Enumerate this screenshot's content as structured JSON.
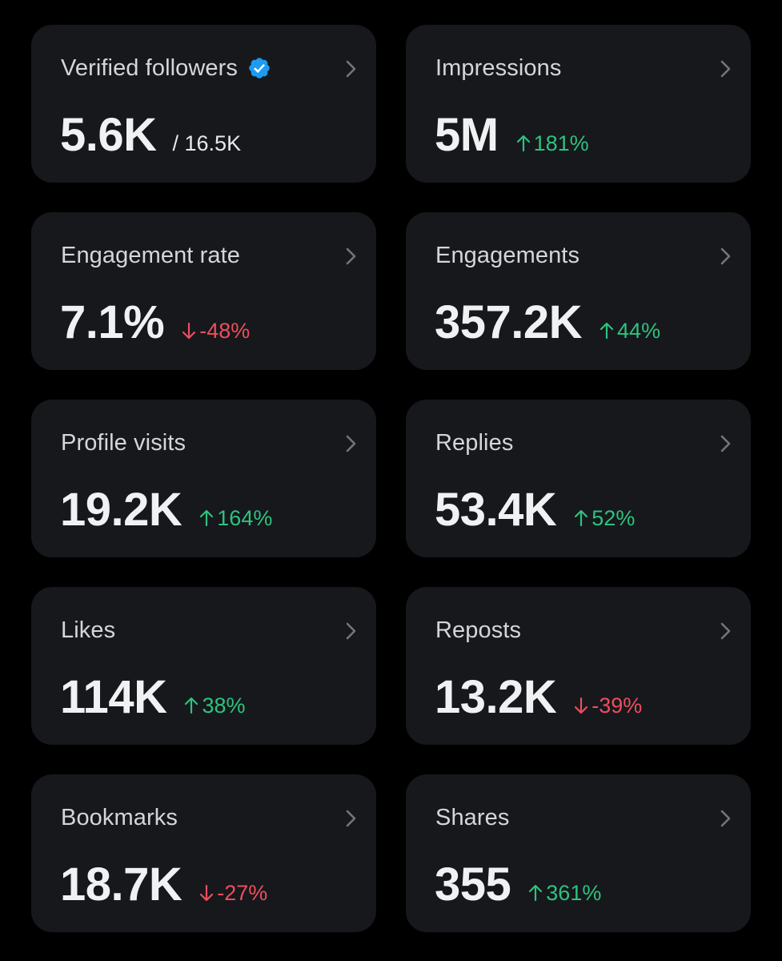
{
  "colors": {
    "background": "#000000",
    "card": "#16181c",
    "title": "#d3d6da",
    "value": "#eff1f3",
    "up": "#2ec27e",
    "down": "#ef4d5d",
    "verified": "#1d9bf0",
    "chevron": "#71767b"
  },
  "cards": [
    {
      "title": "Verified followers",
      "value": "5.6K",
      "total": "/ 16.5K",
      "icon": "verified-badge-icon"
    },
    {
      "title": "Impressions",
      "value": "5M",
      "change": "181%",
      "direction": "up"
    },
    {
      "title": "Engagement rate",
      "value": "7.1%",
      "change": "-48%",
      "direction": "down"
    },
    {
      "title": "Engagements",
      "value": "357.2K",
      "change": "44%",
      "direction": "up"
    },
    {
      "title": "Profile visits",
      "value": "19.2K",
      "change": "164%",
      "direction": "up"
    },
    {
      "title": "Replies",
      "value": "53.4K",
      "change": "52%",
      "direction": "up"
    },
    {
      "title": "Likes",
      "value": "114K",
      "change": "38%",
      "direction": "up"
    },
    {
      "title": "Reposts",
      "value": "13.2K",
      "change": "-39%",
      "direction": "down"
    },
    {
      "title": "Bookmarks",
      "value": "18.7K",
      "change": "-27%",
      "direction": "down"
    },
    {
      "title": "Shares",
      "value": "355",
      "change": "361%",
      "direction": "up"
    }
  ]
}
